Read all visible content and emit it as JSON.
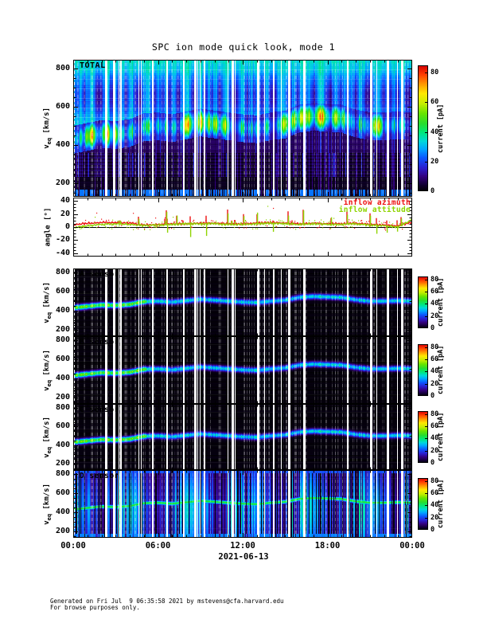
{
  "title": "SPC ion mode quick look, mode 1",
  "y_axis_label": {
    "prefix": "v",
    "sub": "eq",
    "suffix": " [km/s]"
  },
  "angle_axis_label": "angle [°]",
  "x_axis": {
    "tick_labels": [
      "00:00",
      "06:00",
      "12:00",
      "18:00",
      "00:00"
    ],
    "tick_hours": [
      0,
      6,
      12,
      18,
      24
    ],
    "minor_every_hours": 1,
    "date_label": "2021-06-13"
  },
  "colorbar": {
    "label": "current [pA]",
    "ticks": [
      0,
      20,
      40,
      60,
      80
    ],
    "range": [
      0,
      85
    ]
  },
  "colors": {
    "frame": "#000000",
    "legend_azimuth": "#ee1111",
    "legend_attitude": "#8fd400",
    "colormap_stops": [
      [
        0.0,
        "#000000"
      ],
      [
        0.05,
        "#10002e"
      ],
      [
        0.12,
        "#33017e"
      ],
      [
        0.19,
        "#2b1fd0"
      ],
      [
        0.27,
        "#0a58ff"
      ],
      [
        0.34,
        "#00a8ff"
      ],
      [
        0.4,
        "#00d8d8"
      ],
      [
        0.47,
        "#00e87a"
      ],
      [
        0.54,
        "#27dd2e"
      ],
      [
        0.62,
        "#66e400"
      ],
      [
        0.7,
        "#c6ee00"
      ],
      [
        0.78,
        "#ffe800"
      ],
      [
        0.85,
        "#ff9c00"
      ],
      [
        0.93,
        "#ff3c00"
      ],
      [
        1.0,
        "#d40000"
      ]
    ]
  },
  "speed_profile": {
    "hours": [
      0,
      1,
      2,
      3,
      4,
      5,
      6,
      7,
      8,
      9,
      10,
      11,
      12,
      13,
      14,
      15,
      16,
      17,
      18,
      19,
      20,
      21,
      22,
      23,
      24
    ],
    "speed_km_s": [
      430,
      445,
      460,
      455,
      465,
      495,
      500,
      490,
      505,
      520,
      510,
      500,
      490,
      485,
      500,
      510,
      540,
      550,
      545,
      540,
      515,
      500,
      500,
      505,
      500
    ]
  },
  "chart_data": [
    {
      "id": "total",
      "type": "heatmap",
      "label": "TOTAL",
      "style": "total",
      "xlim_hours": [
        0,
        24
      ],
      "ylim": [
        130,
        845
      ],
      "yticks": [
        200,
        400,
        600,
        800
      ],
      "background_current_pA": 32,
      "peak_current_pA": [
        40,
        84
      ],
      "colorbar_ticks": [
        0,
        20,
        40,
        60,
        80
      ]
    },
    {
      "id": "angle",
      "type": "line",
      "xlim_hours": [
        0,
        24
      ],
      "ylim": [
        -45,
        45
      ],
      "yticks": [
        -40,
        -20,
        0,
        20,
        40
      ],
      "legend": [
        {
          "label": "inflow azimuth",
          "color": "#ee1111"
        },
        {
          "label": "inflow attitude",
          "color": "#8fd400"
        }
      ],
      "hours": [
        0,
        1,
        2,
        3,
        4,
        5,
        6,
        7,
        8,
        9,
        10,
        11,
        12,
        13,
        14,
        15,
        16,
        17,
        18,
        19,
        20,
        21,
        22,
        23,
        24
      ],
      "series": [
        {
          "name": "inflow azimuth",
          "values": [
            3,
            6,
            7,
            7,
            6,
            3,
            4,
            5,
            5,
            6,
            6,
            5,
            5,
            6,
            7,
            6,
            5,
            6,
            5,
            5,
            6,
            4,
            3,
            2,
            8
          ]
        },
        {
          "name": "inflow attitude",
          "values": [
            -1,
            2,
            4,
            5,
            4,
            2,
            3,
            4,
            5,
            5,
            5,
            4,
            4,
            5,
            6,
            5,
            4,
            5,
            4,
            4,
            5,
            3,
            2,
            0,
            12
          ]
        }
      ],
      "spike_range_deg": [
        -28,
        36
      ]
    },
    {
      "id": "sensor_a",
      "type": "heatmap",
      "label": "A sensor",
      "style": "sensor",
      "xlim_hours": [
        0,
        24
      ],
      "ylim": [
        130,
        845
      ],
      "yticks": [
        200,
        400,
        600,
        800
      ],
      "band_current_pA": [
        25,
        55
      ],
      "colorbar_ticks": [
        0,
        20,
        40,
        60,
        80
      ]
    },
    {
      "id": "sensor_b",
      "type": "heatmap",
      "label": "B sensor",
      "style": "sensor",
      "xlim_hours": [
        0,
        24
      ],
      "ylim": [
        130,
        845
      ],
      "yticks": [
        200,
        400,
        600,
        800
      ],
      "band_current_pA": [
        25,
        55
      ],
      "colorbar_ticks": [
        0,
        20,
        40,
        60,
        80
      ]
    },
    {
      "id": "sensor_c",
      "type": "heatmap",
      "label": "C sensor",
      "style": "sensor",
      "xlim_hours": [
        0,
        24
      ],
      "ylim": [
        130,
        845
      ],
      "yticks": [
        200,
        400,
        600,
        800
      ],
      "band_current_pA": [
        25,
        55
      ],
      "colorbar_ticks": [
        0,
        20,
        40,
        60,
        80
      ]
    },
    {
      "id": "sensor_d",
      "type": "heatmap",
      "label": "D sensor",
      "style": "sensor_d",
      "xlim_hours": [
        0,
        24
      ],
      "ylim": [
        130,
        845
      ],
      "yticks": [
        200,
        400,
        600,
        800
      ],
      "band_current_pA": [
        15,
        45
      ],
      "colorbar_ticks": [
        0,
        20,
        40,
        60,
        80
      ]
    }
  ],
  "footer": {
    "line1": "Generated on Fri Jul  9 06:35:58 2021 by mstevens@cfa.harvard.edu",
    "line2": "For browse purposes only."
  }
}
